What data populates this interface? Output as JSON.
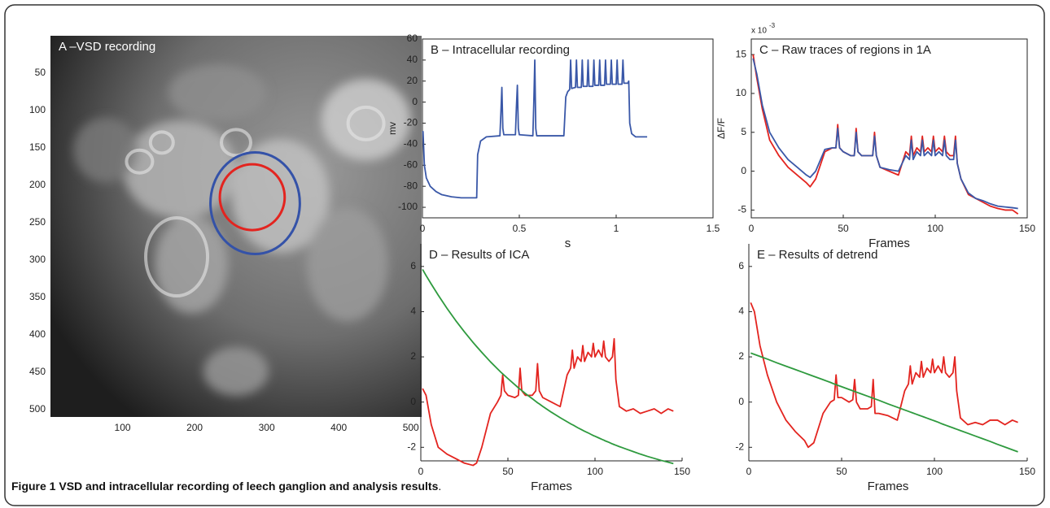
{
  "chart_data": [
    {
      "type": "image",
      "title": "A –VSD recording",
      "xlim": [
        0,
        515
      ],
      "xticks": [
        100,
        200,
        300,
        400,
        500
      ],
      "ylim": [
        0,
        510
      ],
      "yticks": [
        50,
        100,
        150,
        200,
        250,
        300,
        350,
        400,
        450,
        500
      ],
      "circles": [
        {
          "color": "#3452a8",
          "cx": 284,
          "cy": 224,
          "rx": 62,
          "ry": 68
        },
        {
          "color": "#e3241f",
          "cx": 280,
          "cy": 216,
          "rx": 45,
          "ry": 44
        }
      ]
    },
    {
      "type": "line",
      "title": "B – Intracellular recording",
      "xlabel": "s",
      "ylabel": "mv",
      "box": true,
      "xlim": [
        0,
        1.5
      ],
      "xticks": [
        0,
        0.5,
        1,
        1.5
      ],
      "ylim": [
        -110,
        60
      ],
      "yticks": [
        -100,
        -80,
        -60,
        -40,
        -20,
        0,
        20,
        40,
        60
      ],
      "x": [
        0,
        0.003,
        0.01,
        0.02,
        0.04,
        0.07,
        0.1,
        0.15,
        0.2,
        0.28,
        0.285,
        0.3,
        0.33,
        0.4,
        0.405,
        0.41,
        0.415,
        0.42,
        0.48,
        0.485,
        0.49,
        0.495,
        0.5,
        0.57,
        0.575,
        0.58,
        0.585,
        0.59,
        0.73,
        0.74,
        0.75,
        0.76,
        0.765,
        0.77,
        0.79,
        0.795,
        0.8,
        0.82,
        0.825,
        0.83,
        0.85,
        0.855,
        0.86,
        0.88,
        0.885,
        0.89,
        0.91,
        0.915,
        0.92,
        0.94,
        0.945,
        0.95,
        0.97,
        0.975,
        0.98,
        1.0,
        1.005,
        1.01,
        1.03,
        1.035,
        1.04,
        1.06,
        1.065,
        1.07,
        1.08,
        1.1,
        1.16
      ],
      "series": [
        {
          "color": "#3a58a8",
          "values": [
            -28,
            -28,
            -60,
            -72,
            -80,
            -85,
            -88,
            -90,
            -91,
            -91,
            -50,
            -37,
            -33,
            -32,
            -10,
            14,
            -25,
            -31,
            -31,
            -5,
            16,
            -25,
            -31,
            -32,
            0,
            40,
            -25,
            -32,
            -32,
            5,
            10,
            12,
            40,
            13,
            14,
            40,
            14,
            14,
            40,
            15,
            15,
            40,
            15,
            15,
            40,
            16,
            16,
            40,
            16,
            16,
            40,
            17,
            17,
            40,
            17,
            17,
            40,
            17,
            17,
            40,
            18,
            18,
            20,
            -20,
            -30,
            -33,
            -33
          ]
        }
      ]
    },
    {
      "type": "line",
      "title": "C – Raw traces of regions in 1A",
      "xlabel": "Frames",
      "ylabel": "ΔF/F",
      "box": true,
      "y_multiplier": {
        "base": "x 10",
        "exponent": "-3"
      },
      "xlim": [
        0,
        150
      ],
      "xticks": [
        0,
        50,
        100,
        150
      ],
      "ylim": [
        -6,
        17
      ],
      "yticks": [
        -5,
        0,
        5,
        10,
        15
      ],
      "x": [
        1,
        3,
        6,
        10,
        15,
        20,
        25,
        30,
        32,
        35,
        40,
        44,
        46,
        47,
        48,
        50,
        54,
        56,
        57,
        58,
        60,
        64,
        66,
        67,
        68,
        70,
        75,
        80,
        84,
        86,
        87,
        88,
        90,
        92,
        93,
        94,
        96,
        98,
        99,
        100,
        102,
        104,
        105,
        106,
        108,
        110,
        111,
        112,
        114,
        118,
        122,
        126,
        130,
        134,
        138,
        142,
        145
      ],
      "series": [
        {
          "color": "#e3241f",
          "values": [
            15,
            12,
            8,
            4,
            2,
            0.5,
            -0.5,
            -1.5,
            -2,
            -1,
            2.5,
            3,
            3,
            6,
            3,
            2.5,
            2,
            2,
            5.5,
            2.5,
            2,
            2,
            2,
            5,
            2,
            0.5,
            0,
            -0.5,
            2.5,
            2,
            4.5,
            2,
            3,
            2.5,
            4.5,
            2.5,
            3,
            2.5,
            4.5,
            2.5,
            3,
            2.5,
            4.5,
            2.5,
            2,
            2,
            4.5,
            1,
            -1,
            -3,
            -3.5,
            -4,
            -4.5,
            -4.8,
            -5,
            -5,
            -5.5
          ]
        },
        {
          "color": "#3a58a8",
          "values": [
            14.5,
            12.5,
            8.5,
            5,
            3,
            1.5,
            0.5,
            -0.5,
            -0.8,
            0,
            2.8,
            3,
            3,
            5.5,
            3,
            2.5,
            2,
            2,
            5,
            2.5,
            2,
            2,
            2,
            4.5,
            2,
            0.5,
            0.2,
            0,
            2,
            1.5,
            4,
            1.5,
            2.5,
            2,
            4,
            2,
            2.5,
            2,
            4,
            2,
            2.5,
            2,
            4,
            2,
            1.5,
            1.5,
            4,
            1,
            -1,
            -2.8,
            -3.5,
            -3.8,
            -4.2,
            -4.5,
            -4.6,
            -4.7,
            -4.8
          ]
        }
      ]
    },
    {
      "type": "line",
      "title": "D – Results of ICA",
      "xlabel": "Frames",
      "box": false,
      "xlim": [
        0,
        150
      ],
      "xticks": [
        0,
        50,
        100,
        150
      ],
      "ylim": [
        -2.6,
        7
      ],
      "yticks": [
        -2,
        0,
        2,
        4,
        6
      ],
      "x": [
        1,
        3,
        6,
        10,
        15,
        20,
        25,
        30,
        32,
        35,
        40,
        44,
        46,
        47,
        48,
        50,
        54,
        56,
        57,
        58,
        60,
        64,
        66,
        67,
        68,
        70,
        75,
        80,
        84,
        86,
        87,
        88,
        90,
        92,
        93,
        94,
        96,
        98,
        99,
        100,
        102,
        104,
        105,
        106,
        108,
        110,
        111,
        112,
        114,
        118,
        122,
        126,
        130,
        134,
        138,
        142,
        145
      ],
      "series": [
        {
          "color": "#e3241f",
          "values": [
            0.6,
            0.3,
            -1,
            -2,
            -2.3,
            -2.5,
            -2.7,
            -2.8,
            -2.7,
            -2,
            -0.5,
            0,
            0.3,
            1.2,
            0.5,
            0.3,
            0.2,
            0.3,
            1.5,
            0.5,
            0.3,
            0.3,
            0.5,
            1.7,
            0.5,
            0.2,
            0,
            -0.2,
            1.2,
            1.5,
            2.3,
            1.5,
            2,
            1.8,
            2.5,
            1.8,
            2.2,
            2,
            2.6,
            2,
            2.3,
            2,
            2.7,
            2,
            1.8,
            2,
            2.8,
            1,
            -0.2,
            -0.4,
            -0.3,
            -0.5,
            -0.4,
            -0.3,
            -0.5,
            -0.3,
            -0.4
          ]
        },
        {
          "color": "#2e9a3e",
          "values": [
            5.87,
            5.6,
            5.22,
            4.73,
            4.15,
            3.61,
            3.11,
            2.64,
            2.46,
            2.2,
            1.78,
            1.47,
            1.32,
            1.25,
            1.18,
            1.04,
            0.77,
            0.63,
            0.57,
            0.51,
            0.38,
            0.15,
            0.03,
            -0.03,
            -0.08,
            -0.19,
            -0.45,
            -0.69,
            -0.87,
            -0.96,
            -1,
            -1.04,
            -1.13,
            -1.21,
            -1.25,
            -1.29,
            -1.36,
            -1.44,
            -1.48,
            -1.51,
            -1.58,
            -1.65,
            -1.68,
            -1.72,
            -1.78,
            -1.85,
            -1.88,
            -1.91,
            -1.97,
            -2.08,
            -2.19,
            -2.3,
            -2.4,
            -2.49,
            -2.58,
            -2.66,
            -2.72
          ]
        }
      ]
    },
    {
      "type": "line",
      "title": "E – Results of detrend",
      "xlabel": "Frames",
      "box": false,
      "xlim": [
        0,
        150
      ],
      "xticks": [
        0,
        50,
        100,
        150
      ],
      "ylim": [
        -2.6,
        7
      ],
      "yticks": [
        -2,
        0,
        2,
        4,
        6
      ],
      "x": [
        1,
        3,
        6,
        10,
        15,
        20,
        25,
        30,
        32,
        35,
        40,
        44,
        46,
        47,
        48,
        50,
        54,
        56,
        57,
        58,
        60,
        64,
        66,
        67,
        68,
        70,
        75,
        80,
        84,
        86,
        87,
        88,
        90,
        92,
        93,
        94,
        96,
        98,
        99,
        100,
        102,
        104,
        105,
        106,
        108,
        110,
        111,
        112,
        114,
        118,
        122,
        126,
        130,
        134,
        138,
        142,
        145
      ],
      "series": [
        {
          "color": "#e3241f",
          "values": [
            4.4,
            4,
            2.5,
            1.2,
            0,
            -0.8,
            -1.3,
            -1.7,
            -2,
            -1.8,
            -0.5,
            0,
            0.1,
            1.2,
            0.2,
            0.2,
            0,
            0.1,
            1,
            0,
            -0.3,
            -0.3,
            -0.2,
            1,
            -0.5,
            -0.5,
            -0.6,
            -0.8,
            0.5,
            0.8,
            1.6,
            0.8,
            1.3,
            1.1,
            1.8,
            1.1,
            1.5,
            1.3,
            1.9,
            1.3,
            1.6,
            1.3,
            2,
            1.3,
            1.1,
            1.3,
            2,
            0.5,
            -0.7,
            -1,
            -0.9,
            -1,
            -0.8,
            -0.8,
            -1,
            -0.8,
            -0.9
          ]
        },
        {
          "color": "#2e9a3e",
          "values": [
            2.17,
            2.11,
            2.02,
            1.9,
            1.74,
            1.59,
            1.44,
            1.29,
            1.23,
            1.14,
            0.99,
            0.87,
            0.8,
            0.77,
            0.74,
            0.68,
            0.56,
            0.5,
            0.47,
            0.44,
            0.38,
            0.26,
            0.2,
            0.17,
            0.14,
            0.08,
            -0.08,
            -0.23,
            -0.35,
            -0.41,
            -0.44,
            -0.47,
            -0.53,
            -0.59,
            -0.62,
            -0.65,
            -0.71,
            -0.77,
            -0.8,
            -0.83,
            -0.89,
            -0.96,
            -0.99,
            -1.02,
            -1.08,
            -1.14,
            -1.17,
            -1.2,
            -1.26,
            -1.38,
            -1.5,
            -1.62,
            -1.74,
            -1.87,
            -1.99,
            -2.11,
            -2.2
          ]
        }
      ]
    }
  ],
  "caption": {
    "label": "Figure 1",
    "text": "VSD and intracellular recording of leech ganglion and analysis results",
    "end": "."
  }
}
